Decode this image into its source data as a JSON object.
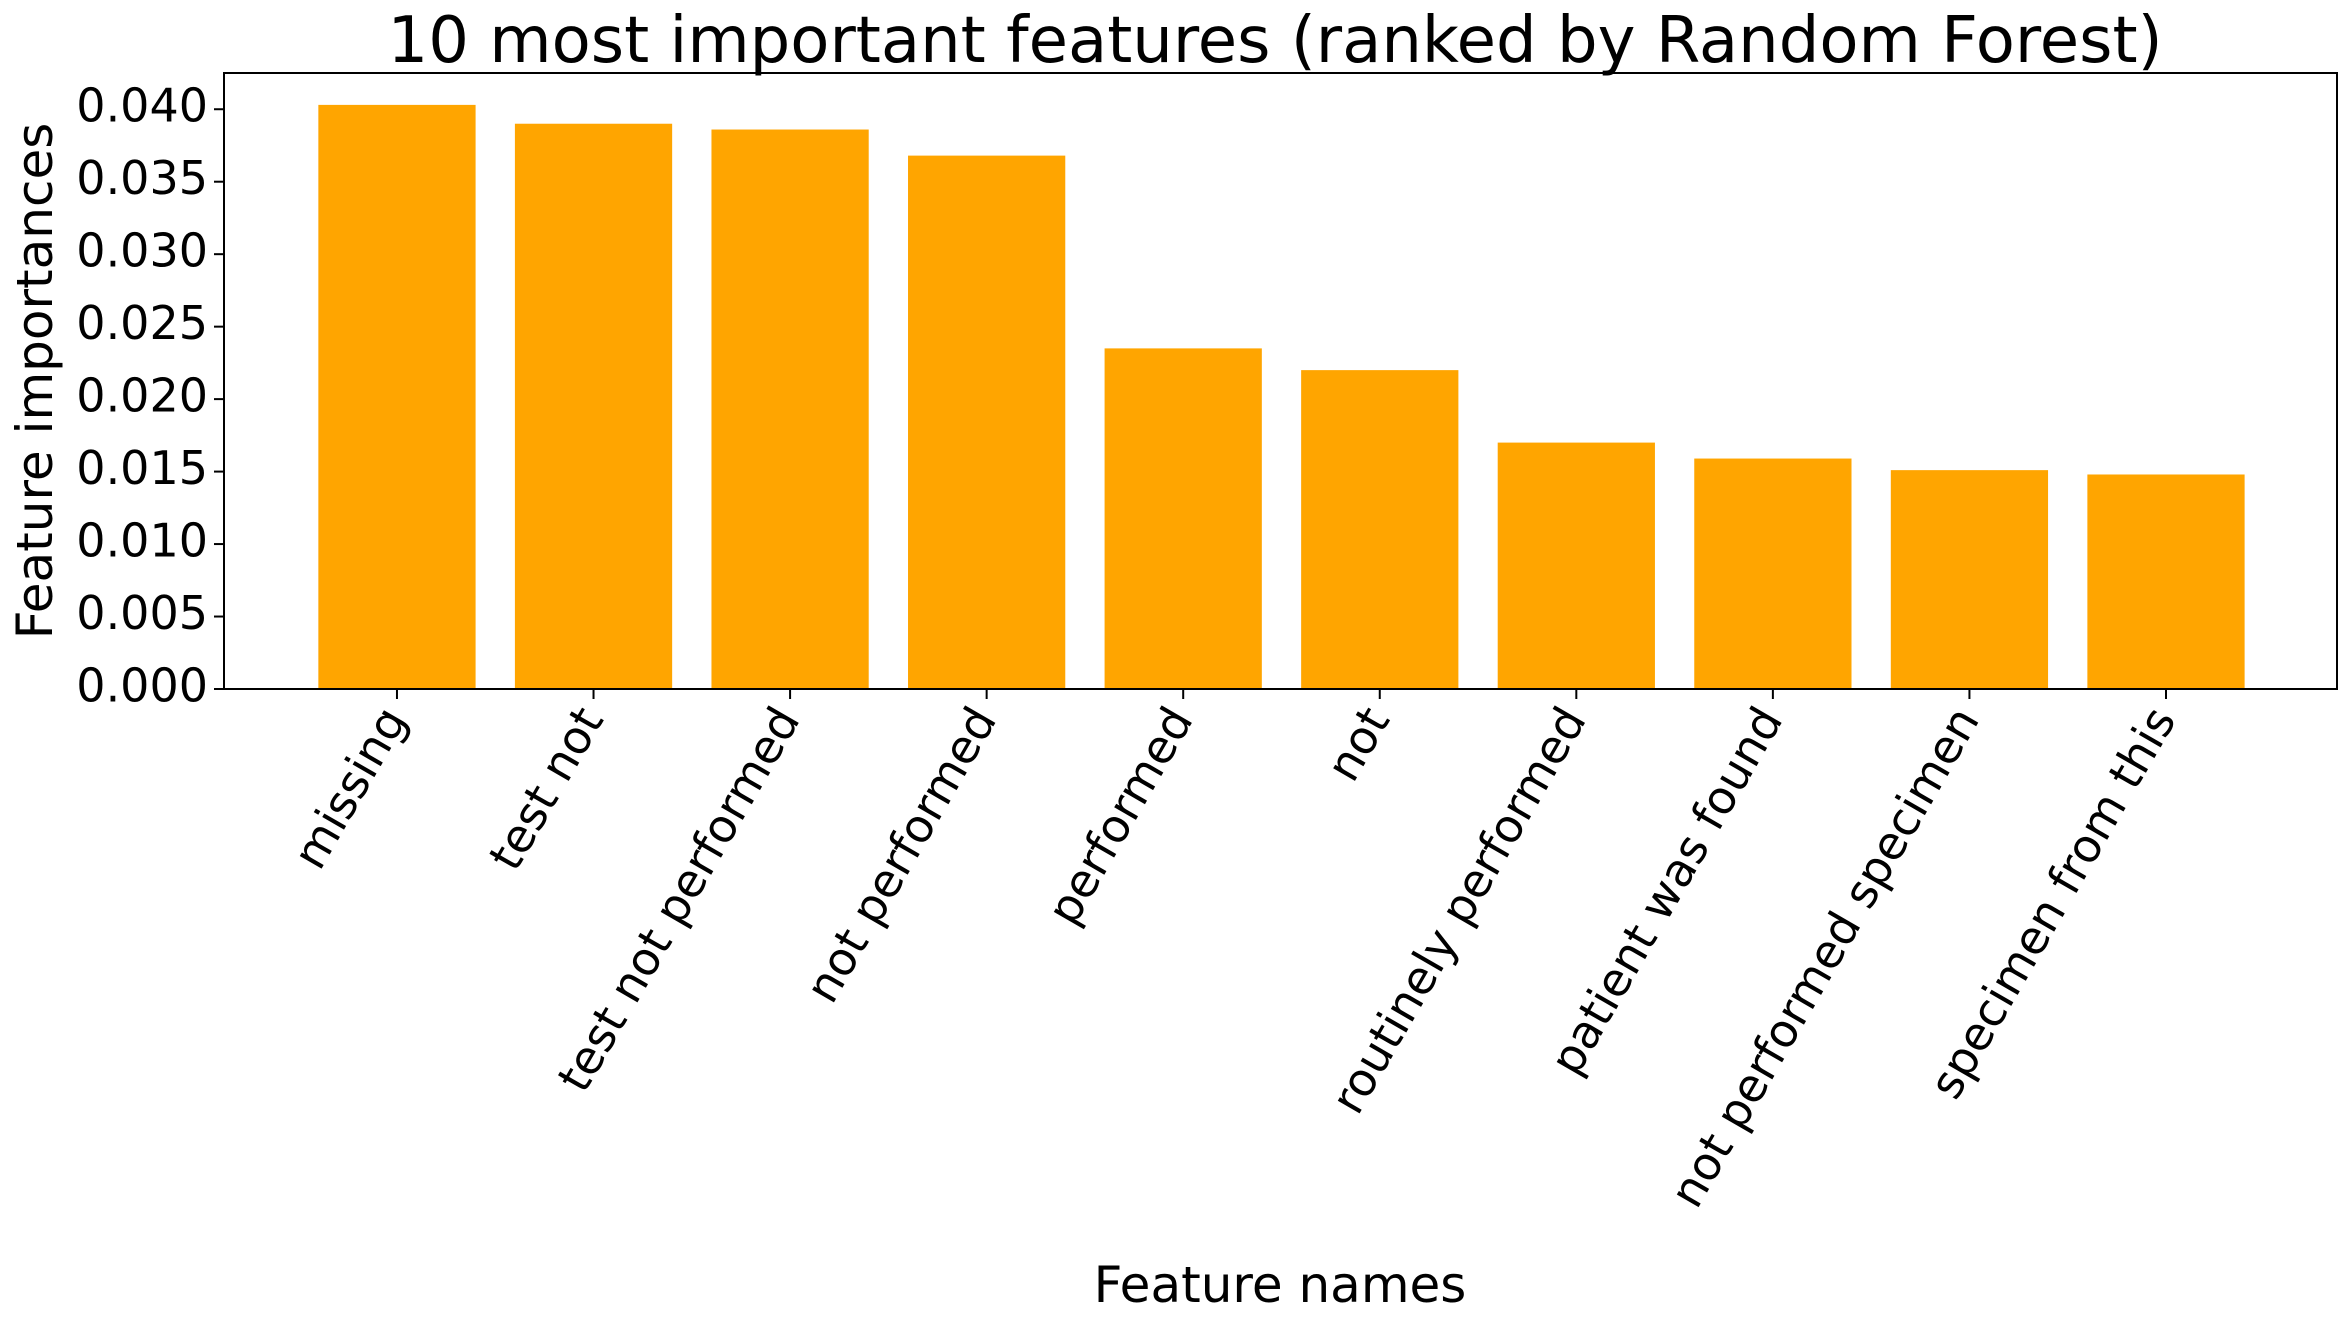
{
  "chart_data": {
    "type": "bar",
    "title": "10 most important features (ranked by Random Forest)",
    "xlabel": "Feature names",
    "ylabel": "Feature importances",
    "categories": [
      "missing",
      "test not",
      "test not performed",
      "not performed",
      "performed",
      "not",
      "routinely performed",
      "patient was found",
      "not performed specimen",
      "specimen from this"
    ],
    "values": [
      0.0403,
      0.039,
      0.0386,
      0.0368,
      0.0235,
      0.022,
      0.017,
      0.0159,
      0.0151,
      0.0148
    ],
    "ylim": [
      0,
      0.0425
    ],
    "yticks": [
      0.0,
      0.005,
      0.01,
      0.015,
      0.02,
      0.025,
      0.03,
      0.035,
      0.04
    ],
    "ytick_labels": [
      "0.000",
      "0.005",
      "0.010",
      "0.015",
      "0.020",
      "0.025",
      "0.030",
      "0.035",
      "0.040"
    ],
    "bar_color": "#ffa500",
    "grid": false,
    "legend": false
  }
}
